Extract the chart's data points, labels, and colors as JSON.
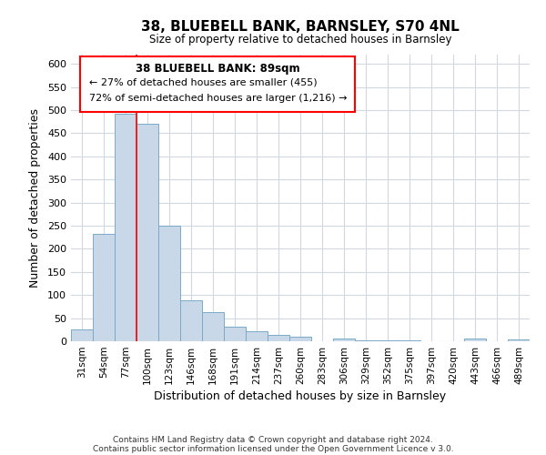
{
  "title": "38, BLUEBELL BANK, BARNSLEY, S70 4NL",
  "subtitle": "Size of property relative to detached houses in Barnsley",
  "xlabel": "Distribution of detached houses by size in Barnsley",
  "ylabel": "Number of detached properties",
  "bar_labels": [
    "31sqm",
    "54sqm",
    "77sqm",
    "100sqm",
    "123sqm",
    "146sqm",
    "168sqm",
    "191sqm",
    "214sqm",
    "237sqm",
    "260sqm",
    "283sqm",
    "306sqm",
    "329sqm",
    "352sqm",
    "375sqm",
    "397sqm",
    "420sqm",
    "443sqm",
    "466sqm",
    "489sqm"
  ],
  "bar_values": [
    25,
    233,
    492,
    470,
    250,
    88,
    63,
    31,
    22,
    13,
    10,
    0,
    5,
    2,
    1,
    1,
    0,
    0,
    5,
    0,
    3
  ],
  "bar_color": "#c8d8e8",
  "bar_edge_color": "#7aaac8",
  "highlight_index": 3,
  "ylim": [
    0,
    620
  ],
  "yticks": [
    0,
    50,
    100,
    150,
    200,
    250,
    300,
    350,
    400,
    450,
    500,
    550,
    600
  ],
  "annotation_title": "38 BLUEBELL BANK: 89sqm",
  "annotation_line1": "← 27% of detached houses are smaller (455)",
  "annotation_line2": "72% of semi-detached houses are larger (1,216) →",
  "footer1": "Contains HM Land Registry data © Crown copyright and database right 2024.",
  "footer2": "Contains public sector information licensed under the Open Government Licence v 3.0.",
  "grid_color": "#d0d8e0",
  "background_color": "#ffffff"
}
